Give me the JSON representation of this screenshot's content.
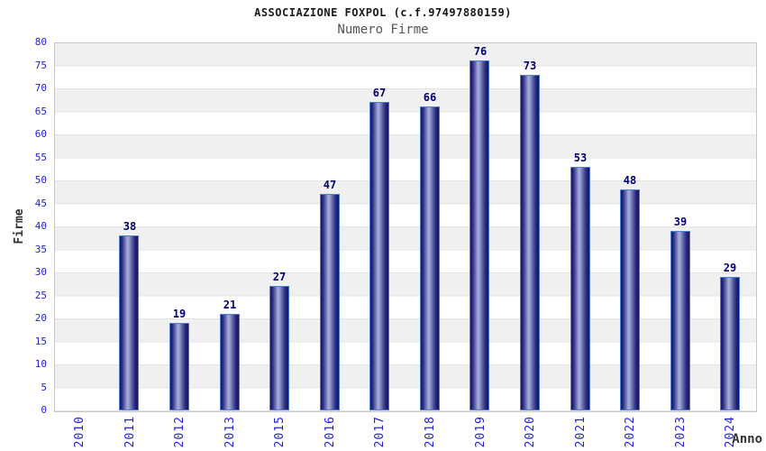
{
  "chart_data": {
    "type": "bar",
    "title": "ASSOCIAZIONE FOXPOL (c.f.97497880159)",
    "subtitle": "Numero Firme",
    "xlabel": "Anno",
    "ylabel": "Firme",
    "categories": [
      "2010",
      "2011",
      "2012",
      "2013",
      "2015",
      "2016",
      "2017",
      "2018",
      "2019",
      "2020",
      "2021",
      "2022",
      "2023",
      "2024"
    ],
    "values": [
      0,
      38,
      19,
      21,
      27,
      47,
      67,
      66,
      76,
      73,
      53,
      48,
      39,
      29
    ],
    "ylim": [
      0,
      80
    ],
    "ytick_step": 5,
    "grid": "alternating-horizontal-bands",
    "legend": "none",
    "colors": {
      "bar_dark": "#14146a",
      "bar_light": "#a9afd9",
      "bar_border": "#4f7fd0",
      "tick_label": "#2222dd",
      "value_label": "#000070",
      "band_gray": "#f0f0f0",
      "plot_border": "#c8c8c8",
      "title_color": "#1a1a1a",
      "subtitle_color": "#555555",
      "axis_title_color": "#333333"
    }
  }
}
